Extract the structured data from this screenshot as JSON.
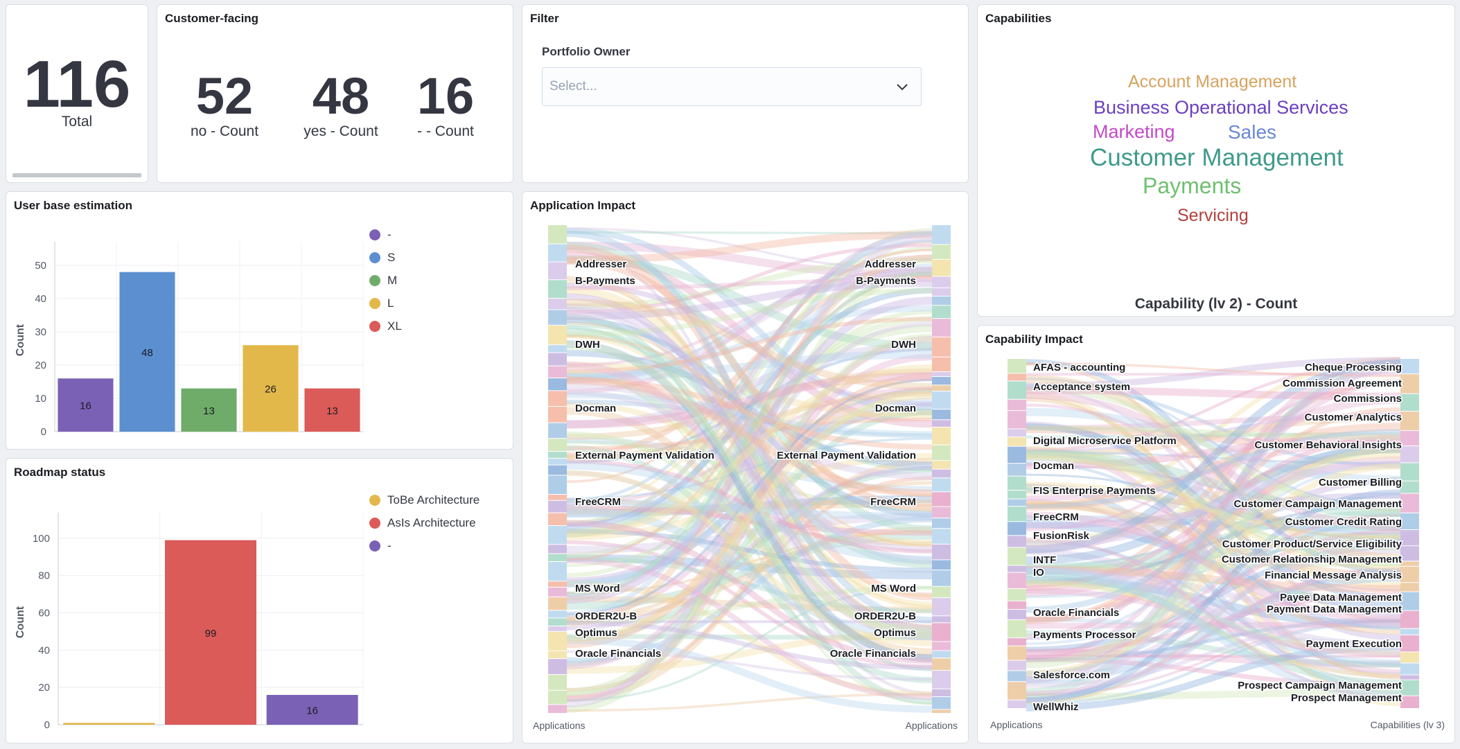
{
  "total": {
    "value": "116",
    "label": "Total"
  },
  "customer_facing": {
    "title": "Customer-facing",
    "metrics": [
      {
        "value": "52",
        "label": "no - Count"
      },
      {
        "value": "48",
        "label": "yes - Count"
      },
      {
        "value": "16",
        "label": "- - Count"
      }
    ]
  },
  "filter": {
    "title": "Filter",
    "field_label": "Portfolio Owner",
    "placeholder": "Select..."
  },
  "capabilities": {
    "title": "Capabilities",
    "words": [
      {
        "text": "Account Management",
        "color": "#d6a35f"
      },
      {
        "text": "Business Operational Services",
        "color": "#6a3fbf"
      },
      {
        "text": "Marketing",
        "color": "#c24ac9"
      },
      {
        "text": "Sales",
        "color": "#6a87d6"
      },
      {
        "text": "Customer Management",
        "color": "#3f9a8a"
      },
      {
        "text": "Payments",
        "color": "#6fc06f"
      },
      {
        "text": "Servicing",
        "color": "#b0413e"
      }
    ],
    "caption": "Capability (lv 2) - Count"
  },
  "user_base": {
    "title": "User base estimation",
    "chart_data": {
      "type": "bar",
      "categories": [
        "-",
        "S",
        "M",
        "L",
        "XL"
      ],
      "values": [
        16,
        48,
        13,
        26,
        13
      ],
      "colors": [
        "#7b61b5",
        "#5b8fcf",
        "#6fac6a",
        "#e2b84a",
        "#db5b58"
      ],
      "ylabel": "Count",
      "ylim": [
        0,
        55
      ],
      "yticks": [
        0,
        10,
        20,
        30,
        40,
        50
      ],
      "legend": [
        "-",
        "S",
        "M",
        "L",
        "XL"
      ],
      "legend_position": "right"
    }
  },
  "roadmap": {
    "title": "Roadmap status",
    "chart_data": {
      "type": "bar",
      "categories": [
        "ToBe Architecture",
        "AsIs Architecture",
        "-"
      ],
      "values": [
        1,
        99,
        16
      ],
      "colors": [
        "#e2b84a",
        "#db5b58",
        "#7b61b5"
      ],
      "ylabel": "Count",
      "ylim": [
        0,
        110
      ],
      "yticks": [
        0,
        20,
        40,
        60,
        80,
        100
      ],
      "legend": [
        "ToBe Architecture",
        "AsIs Architecture",
        "-"
      ],
      "legend_position": "right"
    }
  },
  "app_impact": {
    "title": "Application Impact",
    "labels": [
      "Addresser",
      "B-Payments",
      "DWH",
      "Docman",
      "External Payment Validation",
      "FreeCRM",
      "MS Word",
      "ORDER2U-B",
      "Optimus",
      "Oracle Financials"
    ],
    "left_axis": "Applications",
    "right_axis": "Applications"
  },
  "cap_impact": {
    "title": "Capability Impact",
    "left_labels": [
      "AFAS - accounting",
      "Acceptance system",
      "Digital Microservice Platform",
      "Docman",
      "FIS Enterprise Payments",
      "FreeCRM",
      "FusionRisk",
      "INTF",
      "IO",
      "Oracle Financials",
      "Payments Processor",
      "Salesforce.com",
      "WellWhiz"
    ],
    "right_labels": [
      "Cheque Processing",
      "Commission Agreement",
      "Commissions",
      "Customer Analytics",
      "Customer Behavioral  Insights",
      "Customer Billing",
      "Customer Campaign Management",
      "Customer Credit Rating",
      "Customer Product/Service Eligibility",
      "Customer Relationship Management",
      "Financial Message Analysis",
      "Payee Data Management",
      "Payment Data Management",
      "Payment Execution",
      "Prospect Campaign Management",
      "Prospect Management"
    ],
    "left_axis": "Applications",
    "right_axis": "Capabilities (lv 3)"
  }
}
